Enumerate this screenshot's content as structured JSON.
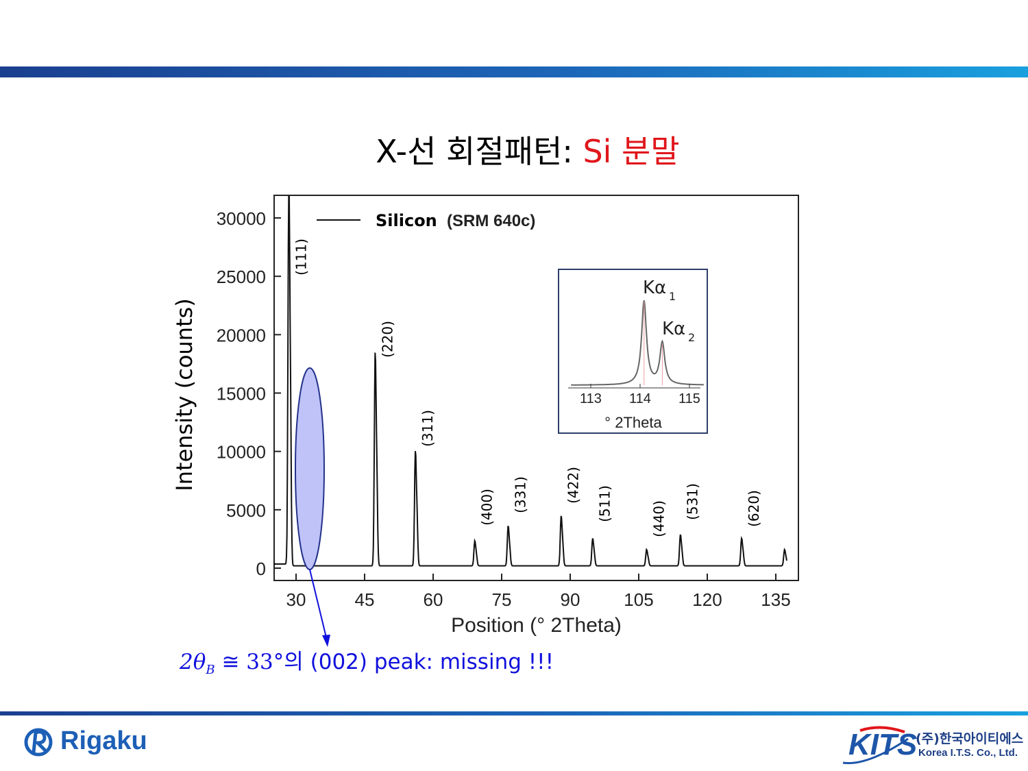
{
  "slide": {
    "title_main": "X-선 회절패턴: ",
    "title_accent": "Si 분말",
    "annotation_math": "2θ",
    "annotation_math_sub": "B",
    "annotation_math_rest": " ≅ 33°",
    "annotation_text": "의 (002) peak: missing !!!",
    "logo_left": "Rigaku",
    "logo_right": "KITS",
    "logo_right_korean": "(주)한국아이티에스",
    "logo_right_english": "Korea I.T.S. Co., Ltd.",
    "colors": {
      "bar": "#1c66b8",
      "accent": "#e0161b",
      "annotation": "#1010dd",
      "ellipse_fill": "#bfc3f8"
    }
  },
  "chart_data": {
    "type": "line",
    "xlabel": "Position (° 2Theta)",
    "ylabel": "Intensity (counts)",
    "xlim": [
      25,
      135
    ],
    "ylim": [
      0,
      30000
    ],
    "x_ticks": [
      "30",
      "45",
      "60",
      "75",
      "90",
      "105",
      "120",
      "135"
    ],
    "y_ticks": [
      "0",
      "5000",
      "10000",
      "15000",
      "20000",
      "25000",
      "30000"
    ],
    "legend": {
      "label": "Silicon",
      "label_bold": "(SRM 640c)",
      "placement": "top-left"
    },
    "baseline": 200,
    "peaks": [
      {
        "x": 28.4,
        "y": 31200,
        "label": "(111)"
      },
      {
        "x": 47.3,
        "y": 17100,
        "label": "(220)"
      },
      {
        "x": 56.1,
        "y": 9200,
        "label": "(311)"
      },
      {
        "x": 69.1,
        "y": 2000,
        "label": "(400)"
      },
      {
        "x": 76.4,
        "y": 3200,
        "label": "(331)"
      },
      {
        "x": 88.0,
        "y": 4000,
        "label": "(422)"
      },
      {
        "x": 94.9,
        "y": 2200,
        "label": "(511)"
      },
      {
        "x": 106.7,
        "y": 1300,
        "label": "(440)"
      },
      {
        "x": 114.1,
        "y": 2500,
        "label": "(531)"
      },
      {
        "x": 127.5,
        "y": 2200,
        "label": "(620)"
      },
      {
        "x": 136.9,
        "y": 1300,
        "label": ""
      }
    ],
    "inset": {
      "xlabel": "° 2Theta",
      "x_ticks": [
        "113",
        "114",
        "115"
      ],
      "xlim": [
        112.6,
        115.3
      ],
      "peaks": [
        {
          "x": 114.08,
          "label": "Kα",
          "sub": "1",
          "rel": 1.0
        },
        {
          "x": 114.45,
          "label": "Kα",
          "sub": "2",
          "rel": 0.5
        }
      ]
    },
    "annotation": {
      "highlight_x": 33,
      "ellipse_label": "missing (002)"
    }
  }
}
